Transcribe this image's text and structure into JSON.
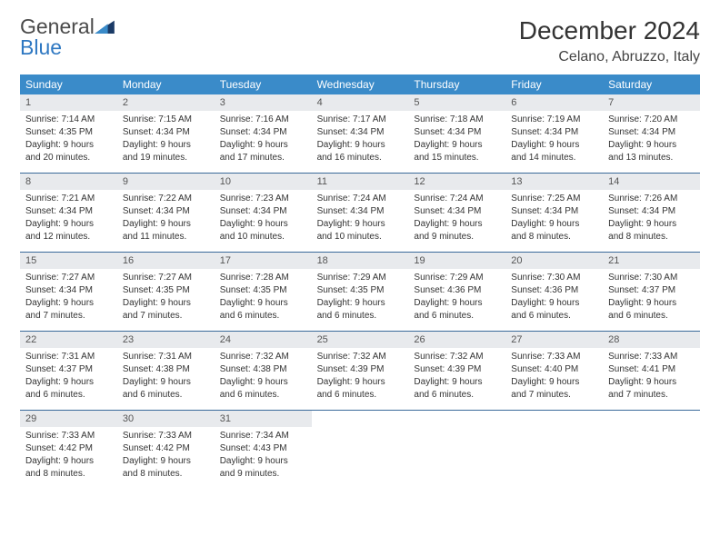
{
  "logo": {
    "text1": "General",
    "text2": "Blue"
  },
  "title": "December 2024",
  "location": "Celano, Abruzzo, Italy",
  "colors": {
    "header_bg": "#3a8bc9",
    "header_text": "#ffffff",
    "daynum_bg": "#e8eaed",
    "rule": "#3a6a9a",
    "logo_blue": "#2f78c2",
    "logo_dark": "#1a3a66"
  },
  "day_headers": [
    "Sunday",
    "Monday",
    "Tuesday",
    "Wednesday",
    "Thursday",
    "Friday",
    "Saturday"
  ],
  "weeks": [
    [
      {
        "n": "1",
        "sr": "Sunrise: 7:14 AM",
        "ss": "Sunset: 4:35 PM",
        "d1": "Daylight: 9 hours",
        "d2": "and 20 minutes."
      },
      {
        "n": "2",
        "sr": "Sunrise: 7:15 AM",
        "ss": "Sunset: 4:34 PM",
        "d1": "Daylight: 9 hours",
        "d2": "and 19 minutes."
      },
      {
        "n": "3",
        "sr": "Sunrise: 7:16 AM",
        "ss": "Sunset: 4:34 PM",
        "d1": "Daylight: 9 hours",
        "d2": "and 17 minutes."
      },
      {
        "n": "4",
        "sr": "Sunrise: 7:17 AM",
        "ss": "Sunset: 4:34 PM",
        "d1": "Daylight: 9 hours",
        "d2": "and 16 minutes."
      },
      {
        "n": "5",
        "sr": "Sunrise: 7:18 AM",
        "ss": "Sunset: 4:34 PM",
        "d1": "Daylight: 9 hours",
        "d2": "and 15 minutes."
      },
      {
        "n": "6",
        "sr": "Sunrise: 7:19 AM",
        "ss": "Sunset: 4:34 PM",
        "d1": "Daylight: 9 hours",
        "d2": "and 14 minutes."
      },
      {
        "n": "7",
        "sr": "Sunrise: 7:20 AM",
        "ss": "Sunset: 4:34 PM",
        "d1": "Daylight: 9 hours",
        "d2": "and 13 minutes."
      }
    ],
    [
      {
        "n": "8",
        "sr": "Sunrise: 7:21 AM",
        "ss": "Sunset: 4:34 PM",
        "d1": "Daylight: 9 hours",
        "d2": "and 12 minutes."
      },
      {
        "n": "9",
        "sr": "Sunrise: 7:22 AM",
        "ss": "Sunset: 4:34 PM",
        "d1": "Daylight: 9 hours",
        "d2": "and 11 minutes."
      },
      {
        "n": "10",
        "sr": "Sunrise: 7:23 AM",
        "ss": "Sunset: 4:34 PM",
        "d1": "Daylight: 9 hours",
        "d2": "and 10 minutes."
      },
      {
        "n": "11",
        "sr": "Sunrise: 7:24 AM",
        "ss": "Sunset: 4:34 PM",
        "d1": "Daylight: 9 hours",
        "d2": "and 10 minutes."
      },
      {
        "n": "12",
        "sr": "Sunrise: 7:24 AM",
        "ss": "Sunset: 4:34 PM",
        "d1": "Daylight: 9 hours",
        "d2": "and 9 minutes."
      },
      {
        "n": "13",
        "sr": "Sunrise: 7:25 AM",
        "ss": "Sunset: 4:34 PM",
        "d1": "Daylight: 9 hours",
        "d2": "and 8 minutes."
      },
      {
        "n": "14",
        "sr": "Sunrise: 7:26 AM",
        "ss": "Sunset: 4:34 PM",
        "d1": "Daylight: 9 hours",
        "d2": "and 8 minutes."
      }
    ],
    [
      {
        "n": "15",
        "sr": "Sunrise: 7:27 AM",
        "ss": "Sunset: 4:34 PM",
        "d1": "Daylight: 9 hours",
        "d2": "and 7 minutes."
      },
      {
        "n": "16",
        "sr": "Sunrise: 7:27 AM",
        "ss": "Sunset: 4:35 PM",
        "d1": "Daylight: 9 hours",
        "d2": "and 7 minutes."
      },
      {
        "n": "17",
        "sr": "Sunrise: 7:28 AM",
        "ss": "Sunset: 4:35 PM",
        "d1": "Daylight: 9 hours",
        "d2": "and 6 minutes."
      },
      {
        "n": "18",
        "sr": "Sunrise: 7:29 AM",
        "ss": "Sunset: 4:35 PM",
        "d1": "Daylight: 9 hours",
        "d2": "and 6 minutes."
      },
      {
        "n": "19",
        "sr": "Sunrise: 7:29 AM",
        "ss": "Sunset: 4:36 PM",
        "d1": "Daylight: 9 hours",
        "d2": "and 6 minutes."
      },
      {
        "n": "20",
        "sr": "Sunrise: 7:30 AM",
        "ss": "Sunset: 4:36 PM",
        "d1": "Daylight: 9 hours",
        "d2": "and 6 minutes."
      },
      {
        "n": "21",
        "sr": "Sunrise: 7:30 AM",
        "ss": "Sunset: 4:37 PM",
        "d1": "Daylight: 9 hours",
        "d2": "and 6 minutes."
      }
    ],
    [
      {
        "n": "22",
        "sr": "Sunrise: 7:31 AM",
        "ss": "Sunset: 4:37 PM",
        "d1": "Daylight: 9 hours",
        "d2": "and 6 minutes."
      },
      {
        "n": "23",
        "sr": "Sunrise: 7:31 AM",
        "ss": "Sunset: 4:38 PM",
        "d1": "Daylight: 9 hours",
        "d2": "and 6 minutes."
      },
      {
        "n": "24",
        "sr": "Sunrise: 7:32 AM",
        "ss": "Sunset: 4:38 PM",
        "d1": "Daylight: 9 hours",
        "d2": "and 6 minutes."
      },
      {
        "n": "25",
        "sr": "Sunrise: 7:32 AM",
        "ss": "Sunset: 4:39 PM",
        "d1": "Daylight: 9 hours",
        "d2": "and 6 minutes."
      },
      {
        "n": "26",
        "sr": "Sunrise: 7:32 AM",
        "ss": "Sunset: 4:39 PM",
        "d1": "Daylight: 9 hours",
        "d2": "and 6 minutes."
      },
      {
        "n": "27",
        "sr": "Sunrise: 7:33 AM",
        "ss": "Sunset: 4:40 PM",
        "d1": "Daylight: 9 hours",
        "d2": "and 7 minutes."
      },
      {
        "n": "28",
        "sr": "Sunrise: 7:33 AM",
        "ss": "Sunset: 4:41 PM",
        "d1": "Daylight: 9 hours",
        "d2": "and 7 minutes."
      }
    ],
    [
      {
        "n": "29",
        "sr": "Sunrise: 7:33 AM",
        "ss": "Sunset: 4:42 PM",
        "d1": "Daylight: 9 hours",
        "d2": "and 8 minutes."
      },
      {
        "n": "30",
        "sr": "Sunrise: 7:33 AM",
        "ss": "Sunset: 4:42 PM",
        "d1": "Daylight: 9 hours",
        "d2": "and 8 minutes."
      },
      {
        "n": "31",
        "sr": "Sunrise: 7:34 AM",
        "ss": "Sunset: 4:43 PM",
        "d1": "Daylight: 9 hours",
        "d2": "and 9 minutes."
      },
      null,
      null,
      null,
      null
    ]
  ]
}
